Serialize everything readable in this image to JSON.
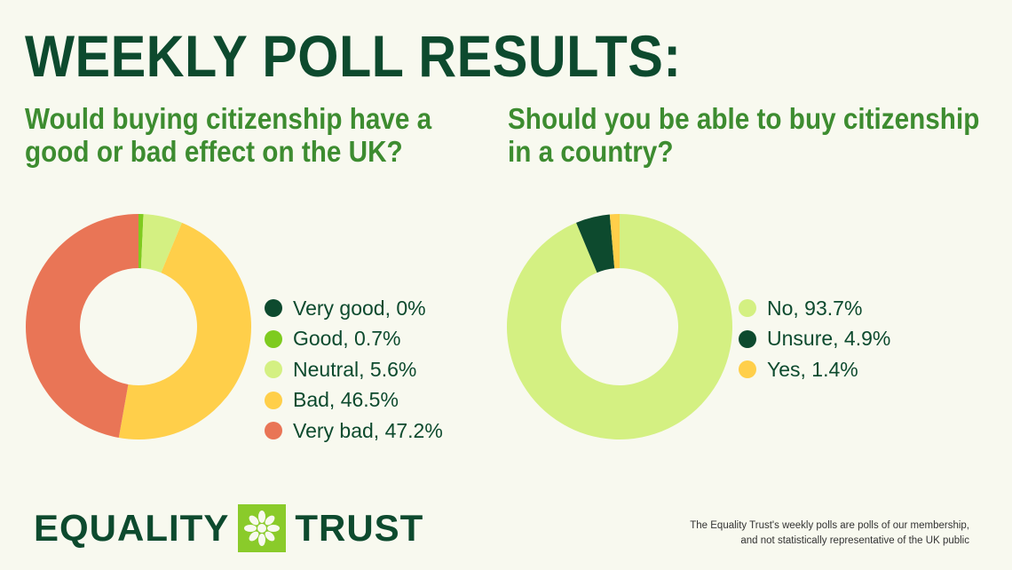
{
  "title": "WEEKLY POLL RESULTS:",
  "chart_data": [
    {
      "type": "pie",
      "title": "Would buying citizenship have a good or bad effect on the UK?",
      "labels": [
        "Very good, 0%",
        "Good, 0.7%",
        "Neutral, 5.6%",
        "Bad, 46.5%",
        "Very bad, 47.2%"
      ],
      "categories": [
        "Very good",
        "Good",
        "Neutral",
        "Bad",
        "Very bad"
      ],
      "values": [
        0,
        0.7,
        5.6,
        46.5,
        47.2
      ],
      "colors": [
        "#0d4a2e",
        "#7ecb1f",
        "#d4f082",
        "#ffcf4a",
        "#e97556"
      ],
      "donut": true,
      "legend": "right"
    },
    {
      "type": "pie",
      "title": "Should you be able to buy citizenship in a country?",
      "labels": [
        "No, 93.7%",
        "Unsure, 4.9%",
        "Yes, 1.4%"
      ],
      "categories": [
        "No",
        "Unsure",
        "Yes"
      ],
      "values": [
        93.7,
        4.9,
        1.4
      ],
      "colors": [
        "#d4f082",
        "#0d4a2e",
        "#ffcf4a"
      ],
      "donut": true,
      "legend": "right"
    }
  ],
  "logo": {
    "left": "EQUALITY",
    "right": "TRUST",
    "icon": "asterisk-flower-icon"
  },
  "footnote": {
    "line1": "The Equality Trust's weekly polls are polls of our membership,",
    "line2": "and not statistically representative of the UK public"
  }
}
